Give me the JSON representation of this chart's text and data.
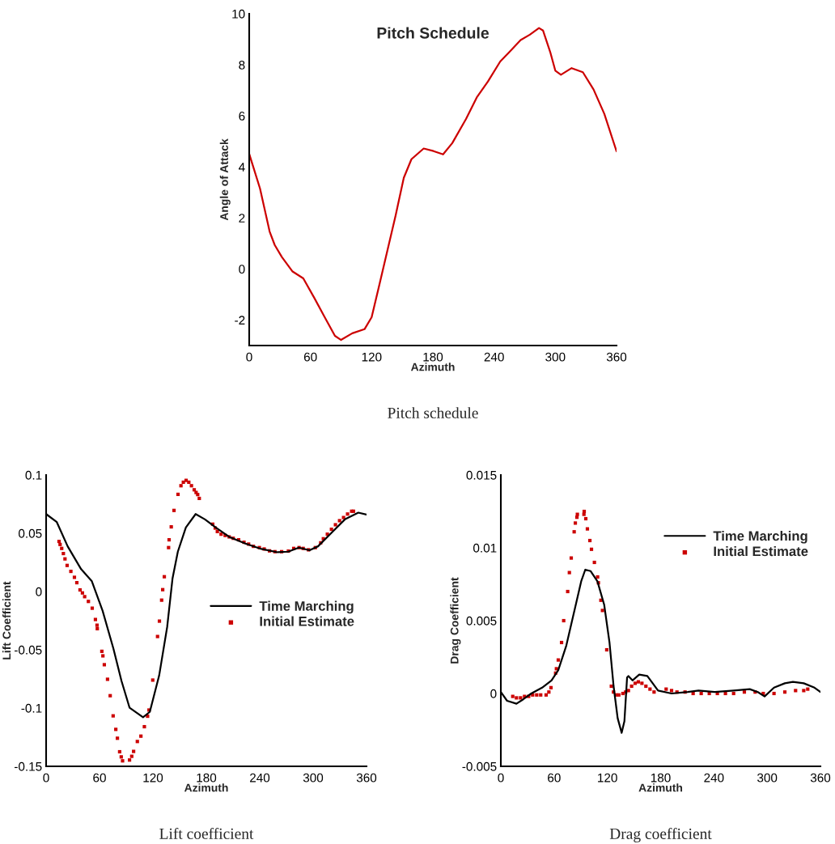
{
  "chart_data": [
    {
      "type": "line",
      "title": "Pitch Schedule",
      "xlabel": "Azimuth",
      "ylabel": "Angle of Attack",
      "annotations": [
        "Pitch schedule"
      ],
      "xlim": [
        0,
        360
      ],
      "ylim": [
        -3,
        10
      ],
      "xticks": [
        0,
        60,
        120,
        180,
        240,
        300,
        360
      ],
      "yticks": [
        -2,
        0,
        2,
        4,
        6,
        8,
        10
      ],
      "grid": false,
      "legend": false,
      "series": [
        {
          "color": "#cc0000",
          "x": [
            0,
            10.6,
            20,
            25,
            32,
            42.5,
            53,
            64,
            74,
            84,
            90,
            101,
            113,
            120,
            127.5,
            135.5,
            143.5,
            151.5,
            159,
            171,
            180.6,
            190,
            199,
            212.5,
            223,
            234,
            246,
            255,
            266,
            275,
            284,
            288,
            295,
            300,
            305.5,
            316,
            327,
            337.5,
            348,
            360
          ],
          "values": [
            4.51,
            3.15,
            1.47,
            0.94,
            0.47,
            -0.1,
            -0.37,
            -1.15,
            -1.89,
            -2.62,
            -2.78,
            -2.52,
            -2.36,
            -1.89,
            -0.63,
            0.73,
            2.1,
            3.57,
            4.3,
            4.72,
            4.62,
            4.49,
            4.93,
            5.88,
            6.72,
            7.35,
            8.13,
            8.5,
            8.97,
            9.18,
            9.44,
            9.34,
            8.5,
            7.77,
            7.61,
            7.87,
            7.71,
            7.03,
            6.08,
            4.61
          ]
        }
      ]
    },
    {
      "type": "line",
      "xlabel": "Azimuth",
      "ylabel": "Lift Coefficient",
      "annotations": [
        "Lift coefficient"
      ],
      "xlim": [
        0,
        360
      ],
      "ylim": [
        -0.15,
        0.1
      ],
      "xticks": [
        0,
        60,
        120,
        180,
        240,
        300,
        360
      ],
      "yticks": [
        -0.15,
        -0.1,
        -0.05,
        0,
        0.05,
        0.1
      ],
      "grid": false,
      "legend": "center right",
      "series": [
        {
          "name": "Time Marching",
          "type": "line",
          "color": "#000000",
          "x": [
            0,
            12,
            24.2,
            39.3,
            51.4,
            63.5,
            75.6,
            84.7,
            93.8,
            108.9,
            116.5,
            127,
            136,
            142,
            148,
            157,
            168,
            178.5,
            190.6,
            205.7,
            223.9,
            242,
            260,
            272,
            284,
            296,
            305.5,
            320.6,
            335.7,
            350.8,
            360
          ],
          "values": [
            0.0665,
            0.0596,
            0.0388,
            0.0192,
            0.0088,
            -0.0166,
            -0.049,
            -0.0767,
            -0.0998,
            -0.1079,
            -0.1033,
            -0.0721,
            -0.0305,
            0.0111,
            0.0342,
            0.055,
            0.0665,
            0.0619,
            0.055,
            0.0469,
            0.0411,
            0.0365,
            0.0337,
            0.0342,
            0.0377,
            0.0354,
            0.0388,
            0.0504,
            0.0619,
            0.0677,
            0.0661
          ]
        },
        {
          "name": "Initial Estimate",
          "type": "scatter",
          "marker": "square",
          "color": "#cc0000",
          "x": [
            14.5,
            15.7,
            17.5,
            19.4,
            21.2,
            23.6,
            27.8,
            31.8,
            34.5,
            38.1,
            40.8,
            43.3,
            47.5,
            51.8,
            55.4,
            57.2,
            57.5,
            62.6,
            63.8,
            65.4,
            69,
            72,
            75.3,
            78.3,
            80.1,
            82.6,
            84.4,
            85.9,
            93.7,
            96.2,
            98.3,
            102.5,
            106.5,
            110.4,
            114,
            115.6,
            119.8,
            125.2,
            127.3,
            129.8,
            131,
            132.8,
            137.6,
            138.2,
            140.6,
            143.7,
            148.2,
            151.5,
            154.2,
            157.3,
            160.3,
            163.3,
            166.4,
            168.5,
            170.3,
            172.1,
            187.2,
            190,
            192.4,
            196.6,
            201.2,
            205.7,
            210.2,
            216.3,
            222.3,
            227.5,
            232.9,
            239.6,
            245,
            251,
            257.1,
            264.6,
            272.2,
            278.2,
            284.2,
            288.8,
            294.8,
            302.5,
            308.5,
            311.5,
            316,
            320.6,
            325.1,
            329.7,
            334.2,
            338.7,
            343.3,
            345.4
          ],
          "values": [
            0.043,
            0.0404,
            0.037,
            0.0326,
            0.028,
            0.0224,
            0.0173,
            0.0122,
            0.0076,
            0.0014,
            -0.0012,
            -0.0044,
            -0.0085,
            -0.0143,
            -0.024,
            -0.0289,
            -0.0319,
            -0.0513,
            -0.0552,
            -0.0628,
            -0.0753,
            -0.0894,
            -0.1067,
            -0.1183,
            -0.1259,
            -0.1375,
            -0.1419,
            -0.1453,
            -0.1446,
            -0.1414,
            -0.1372,
            -0.1287,
            -0.1241,
            -0.116,
            -0.107,
            -0.1017,
            -0.076,
            -0.0386,
            -0.0254,
            -0.0074,
            0.0016,
            0.0127,
            0.0377,
            0.0444,
            0.0555,
            0.0696,
            0.0834,
            0.0908,
            0.0938,
            0.0954,
            0.0938,
            0.0908,
            0.0873,
            0.085,
            0.0832,
            0.0799,
            0.0578,
            0.0545,
            0.0515,
            0.0492,
            0.0481,
            0.0469,
            0.0457,
            0.0444,
            0.0423,
            0.0407,
            0.0388,
            0.0377,
            0.0365,
            0.0349,
            0.0342,
            0.0342,
            0.0347,
            0.037,
            0.0377,
            0.037,
            0.0358,
            0.0377,
            0.0418,
            0.0453,
            0.0492,
            0.0534,
            0.0573,
            0.0608,
            0.0635,
            0.0665,
            0.0689,
            0.0689
          ]
        }
      ]
    },
    {
      "type": "line",
      "xlabel": "Azimuth",
      "ylabel": "Drag Coefficient",
      "annotations": [
        "Drag coefficient"
      ],
      "xlim": [
        0,
        360
      ],
      "ylim": [
        -0.005,
        0.015
      ],
      "xticks": [
        0,
        60,
        120,
        180,
        240,
        300,
        360
      ],
      "yticks": [
        -0.005,
        0,
        0.005,
        0.01,
        0.015
      ],
      "grid": false,
      "legend": "top right",
      "series": [
        {
          "name": "Time Marching",
          "type": "line",
          "color": "#000000",
          "x": [
            0,
            7,
            17.6,
            25.2,
            34.3,
            46.5,
            57.1,
            64.7,
            73.8,
            82.9,
            90.5,
            95.1,
            101.2,
            108.8,
            116.4,
            122.4,
            127,
            131.6,
            136.1,
            139.2,
            142.2,
            143.7,
            148.3,
            155.9,
            165,
            177.1,
            192.3,
            210.5,
            222.7,
            240.9,
            262.2,
            280.4,
            289.5,
            297.1,
            307.7,
            319.9,
            329,
            341.2,
            353.3,
            360
          ],
          "values": [
            0.0001,
            -0.0005,
            -0.0007,
            -0.0004,
            0,
            0.0004,
            0.0009,
            0.0016,
            0.0033,
            0.0057,
            0.0077,
            0.0085,
            0.0084,
            0.0077,
            0.0061,
            0.0035,
            0.0005,
            -0.0017,
            -0.0027,
            -0.0019,
            0.0011,
            0.0012,
            0.0009,
            0.0013,
            0.0012,
            0.0002,
            0,
            0.0001,
            0.0002,
            0.0001,
            0.0002,
            0.0003,
            0.0001,
            -0.0002,
            0.0004,
            0.0007,
            0.0008,
            0.0007,
            0.0004,
            0.0001
          ]
        },
        {
          "name": "Initial Estimate",
          "type": "scatter",
          "marker": "square",
          "color": "#cc0000",
          "x": [
            13.4,
            17.6,
            22.2,
            26.7,
            31.3,
            35.8,
            40.4,
            44.9,
            51,
            54.1,
            56.5,
            61.7,
            62.6,
            64.7,
            68.4,
            70.8,
            75.3,
            77.2,
            79.3,
            82.6,
            83.9,
            85.7,
            86.2,
            93.6,
            93.9,
            95.7,
            97.5,
            100.3,
            102.1,
            105.4,
            109,
            109.9,
            112.7,
            114.5,
            119.3,
            124.5,
            126.9,
            129.9,
            132.9,
            137.5,
            140.6,
            143.7,
            147.3,
            151.3,
            154.9,
            158.9,
            163.4,
            168,
            172.6,
            186.2,
            192.3,
            198.4,
            207.5,
            216.6,
            225.7,
            234.8,
            243.9,
            253,
            262.2,
            274.3,
            286.5,
            295.6,
            307.7,
            319.9,
            332,
            341.2,
            345.7
          ],
          "values": [
            -0.0002,
            -0.0003,
            -0.0003,
            -0.0002,
            -0.0002,
            -0.0001,
            -0.0001,
            -0.0001,
            -0.0001,
            0.0001,
            0.0004,
            0.0014,
            0.0017,
            0.0023,
            0.0035,
            0.005,
            0.007,
            0.0083,
            0.0093,
            0.0111,
            0.0117,
            0.0121,
            0.0123,
            0.0123,
            0.0125,
            0.012,
            0.0113,
            0.0105,
            0.0099,
            0.009,
            0.008,
            0.0076,
            0.0064,
            0.0057,
            0.003,
            0.0005,
            0.0001,
            -0.0001,
            -0.0001,
            0,
            0.0001,
            0.0002,
            0.0005,
            0.0007,
            0.0008,
            0.0007,
            0.0005,
            0.0003,
            0.0001,
            0.0003,
            0.0002,
            0.0001,
            0.0001,
            0,
            0,
            0,
            0,
            0,
            0,
            0.0001,
            0.0001,
            0,
            0,
            0.0001,
            0.0002,
            0.0002,
            0.0003
          ]
        }
      ]
    }
  ]
}
